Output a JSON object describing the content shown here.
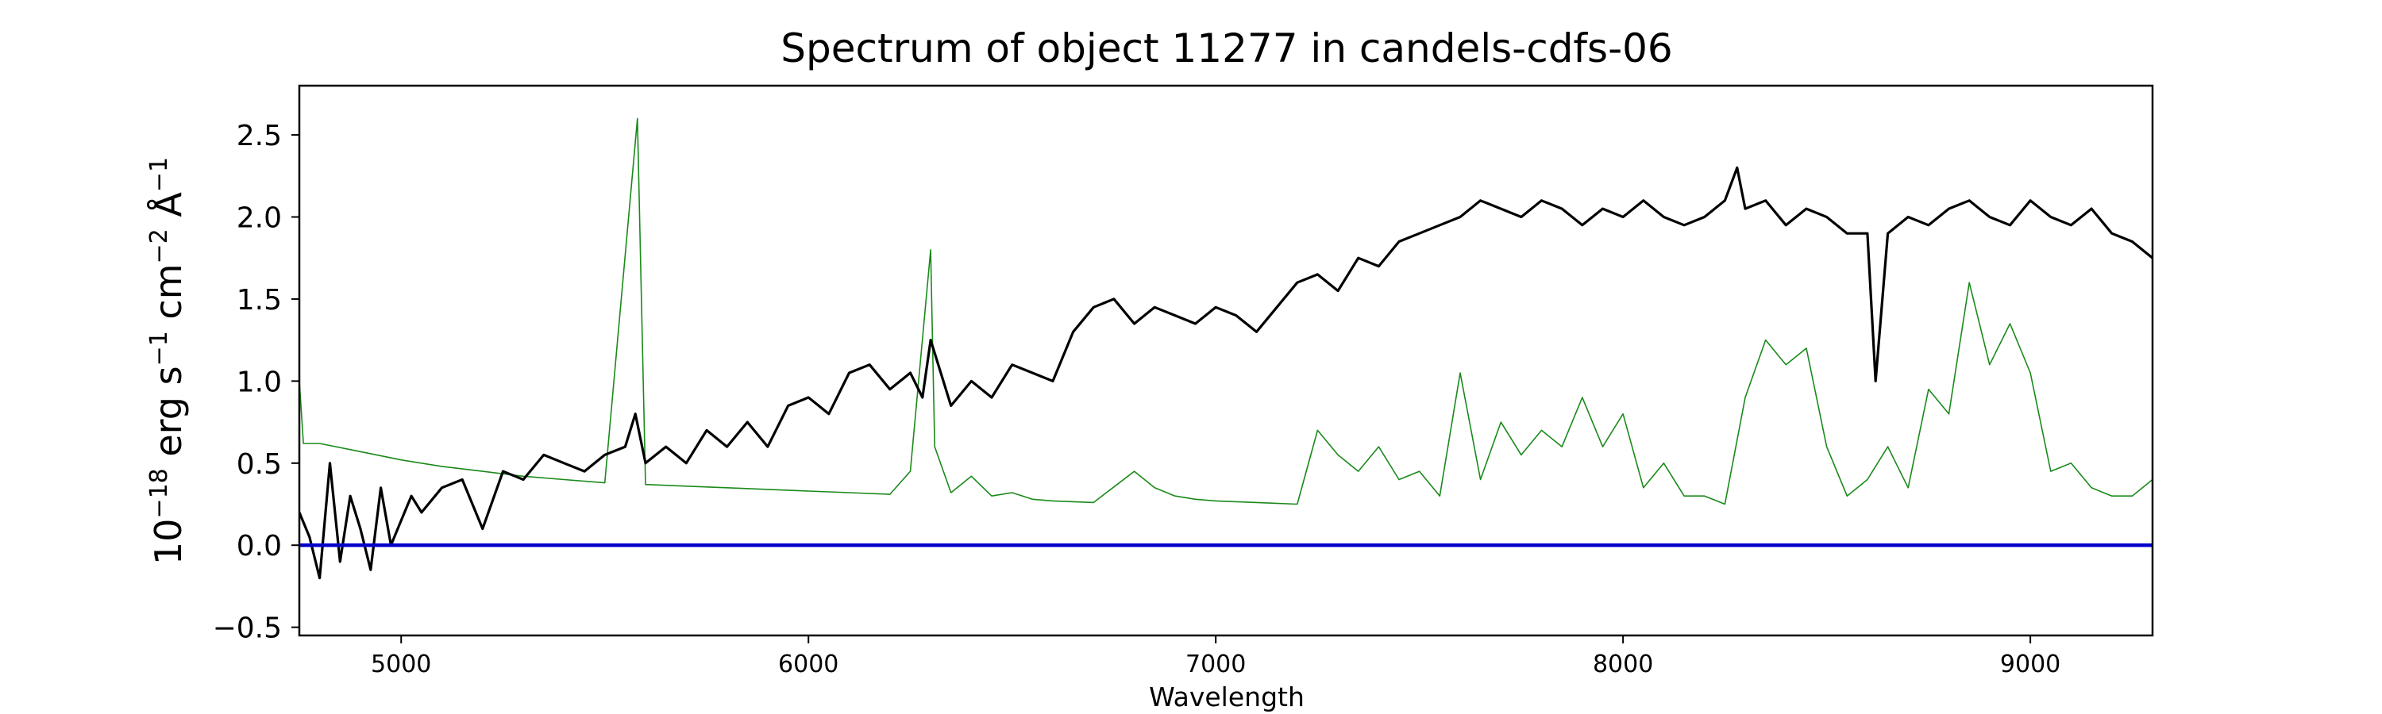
{
  "chart_data": {
    "type": "line",
    "title": "Spectrum of object 11277 in candels-cdfs-06",
    "xlabel": "Wavelength",
    "ylabel_base": "10",
    "ylabel_exp": "−18",
    "ylabel_unit_erg": "erg s",
    "ylabel_unit_cm": "cm",
    "ylabel_unit_A": "Å",
    "ylabel_exp_s": "−1",
    "ylabel_exp_cm": "−2",
    "ylabel_exp_A": "−1",
    "xlim": [
      4750,
      9300
    ],
    "ylim": [
      -0.55,
      2.8
    ],
    "xticks": [
      5000,
      6000,
      7000,
      8000,
      9000
    ],
    "yticks": [
      -0.5,
      0.0,
      0.5,
      1.0,
      1.5,
      2.0,
      2.5
    ],
    "ytick_labels": [
      "−0.5",
      "0.0",
      "0.5",
      "1.0",
      "1.5",
      "2.0",
      "2.5"
    ],
    "grid": false,
    "colors": {
      "flux": "#000000",
      "error": "#1a8a1a",
      "zero": "#0000cc"
    },
    "series": [
      {
        "role": "flux",
        "x": [
          4750,
          4775,
          4800,
          4825,
          4850,
          4875,
          4900,
          4925,
          4950,
          4975,
          5000,
          5025,
          5050,
          5100,
          5150,
          5200,
          5250,
          5300,
          5350,
          5400,
          5450,
          5500,
          5550,
          5575,
          5600,
          5650,
          5700,
          5750,
          5800,
          5850,
          5900,
          5950,
          6000,
          6050,
          6100,
          6150,
          6200,
          6250,
          6280,
          6300,
          6350,
          6400,
          6450,
          6500,
          6550,
          6600,
          6650,
          6700,
          6750,
          6800,
          6850,
          6900,
          6950,
          7000,
          7050,
          7100,
          7150,
          7200,
          7250,
          7300,
          7350,
          7400,
          7450,
          7500,
          7550,
          7600,
          7650,
          7700,
          7750,
          7800,
          7850,
          7900,
          7950,
          8000,
          8050,
          8100,
          8150,
          8200,
          8250,
          8280,
          8300,
          8350,
          8400,
          8450,
          8500,
          8550,
          8600,
          8620,
          8650,
          8700,
          8750,
          8800,
          8850,
          8900,
          8950,
          9000,
          9050,
          9100,
          9150,
          9200,
          9250,
          9300
        ],
        "y": [
          0.2,
          0.05,
          -0.2,
          0.5,
          -0.1,
          0.3,
          0.1,
          -0.15,
          0.35,
          0.0,
          0.15,
          0.3,
          0.2,
          0.35,
          0.4,
          0.1,
          0.45,
          0.4,
          0.55,
          0.5,
          0.45,
          0.55,
          0.6,
          0.8,
          0.5,
          0.6,
          0.5,
          0.7,
          0.6,
          0.75,
          0.6,
          0.85,
          0.9,
          0.8,
          1.05,
          1.1,
          0.95,
          1.05,
          0.9,
          1.25,
          0.85,
          1.0,
          0.9,
          1.1,
          1.05,
          1.0,
          1.3,
          1.45,
          1.5,
          1.35,
          1.45,
          1.4,
          1.35,
          1.45,
          1.4,
          1.3,
          1.45,
          1.6,
          1.65,
          1.55,
          1.75,
          1.7,
          1.85,
          1.9,
          1.95,
          2.0,
          2.1,
          2.05,
          2.0,
          2.1,
          2.05,
          1.95,
          2.05,
          2.0,
          2.1,
          2.0,
          1.95,
          2.0,
          2.1,
          2.3,
          2.05,
          2.1,
          1.95,
          2.05,
          2.0,
          1.9,
          1.9,
          1.0,
          1.9,
          2.0,
          1.95,
          2.05,
          2.1,
          2.0,
          1.95,
          2.1,
          2.0,
          1.95,
          2.05,
          1.9,
          1.85,
          1.75
        ]
      },
      {
        "role": "error",
        "x": [
          4750,
          4760,
          4800,
          4900,
          5000,
          5100,
          5200,
          5300,
          5400,
          5500,
          5580,
          5600,
          5700,
          5800,
          5900,
          6000,
          6100,
          6200,
          6250,
          6300,
          6310,
          6350,
          6400,
          6450,
          6500,
          6550,
          6600,
          6700,
          6800,
          6850,
          6900,
          6950,
          7000,
          7100,
          7200,
          7250,
          7300,
          7350,
          7400,
          7450,
          7500,
          7550,
          7600,
          7650,
          7700,
          7750,
          7800,
          7850,
          7900,
          7950,
          8000,
          8050,
          8100,
          8150,
          8200,
          8250,
          8300,
          8350,
          8400,
          8450,
          8500,
          8550,
          8600,
          8650,
          8700,
          8750,
          8800,
          8850,
          8900,
          8950,
          9000,
          9050,
          9100,
          9150,
          9200,
          9250,
          9300
        ],
        "y": [
          1.0,
          0.62,
          0.62,
          0.57,
          0.52,
          0.48,
          0.45,
          0.42,
          0.4,
          0.38,
          2.6,
          0.37,
          0.36,
          0.35,
          0.34,
          0.33,
          0.32,
          0.31,
          0.45,
          1.8,
          0.6,
          0.32,
          0.42,
          0.3,
          0.32,
          0.28,
          0.27,
          0.26,
          0.45,
          0.35,
          0.3,
          0.28,
          0.27,
          0.26,
          0.25,
          0.7,
          0.55,
          0.45,
          0.6,
          0.4,
          0.45,
          0.3,
          1.05,
          0.4,
          0.75,
          0.55,
          0.7,
          0.6,
          0.9,
          0.6,
          0.8,
          0.35,
          0.5,
          0.3,
          0.3,
          0.25,
          0.9,
          1.25,
          1.1,
          1.2,
          0.6,
          0.3,
          0.4,
          0.6,
          0.35,
          0.95,
          0.8,
          1.6,
          1.1,
          1.35,
          1.05,
          0.45,
          0.5,
          0.35,
          0.3,
          0.3,
          0.4
        ]
      },
      {
        "role": "zero",
        "x": [
          4750,
          9300
        ],
        "y": [
          0,
          0
        ]
      }
    ]
  }
}
